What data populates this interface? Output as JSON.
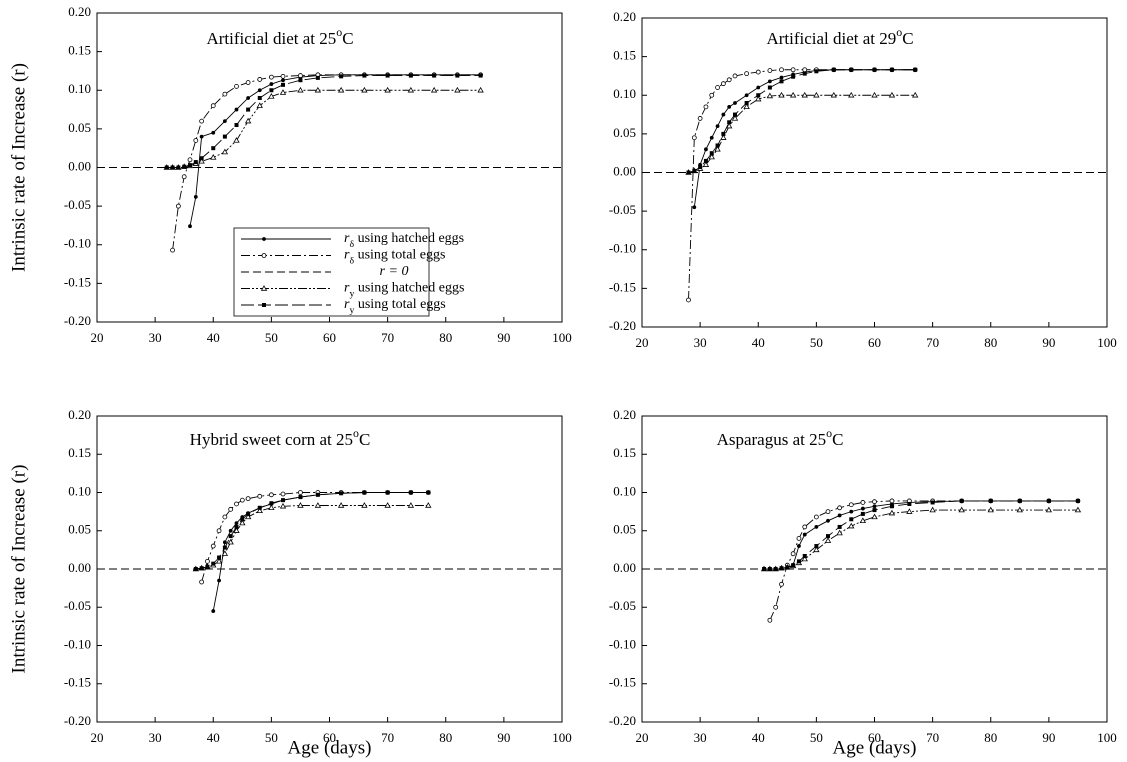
{
  "chart_data": [
    {
      "type": "line",
      "title": [
        "Artificial diet at 25",
        "o",
        "C"
      ],
      "ylabel": "Intrinsic rate of Increase (r)",
      "xlim": [
        20,
        100
      ],
      "ylim": [
        -0.2,
        0.2
      ],
      "xticks": [
        20,
        30,
        40,
        50,
        60,
        70,
        80,
        90,
        100
      ],
      "yticks": [
        {
          "value": -0.2,
          "label": "-0.20"
        },
        {
          "value": -0.15,
          "label": "-0.15"
        },
        {
          "value": -0.1,
          "label": "-0.10"
        },
        {
          "value": -0.05,
          "label": "-0.05"
        },
        {
          "value": 0,
          "label": "0.00"
        },
        {
          "value": 0.05,
          "label": "0.05"
        },
        {
          "value": 0.1,
          "label": "0.10"
        },
        {
          "value": 0.15,
          "label": "0.15"
        },
        {
          "value": 0.2,
          "label": "0.20"
        }
      ],
      "legend": "lower-center",
      "reference_line": {
        "name": "r = 0",
        "value": 0,
        "color": "#000000",
        "line_style": "dash"
      },
      "x": [
        32,
        33,
        34,
        35,
        36,
        37,
        38,
        40,
        42,
        44,
        46,
        48,
        50,
        52,
        55,
        58,
        62,
        66,
        70,
        74,
        78,
        82,
        86
      ],
      "series": [
        {
          "name": [
            "r",
            "δ",
            " using hatched eggs"
          ],
          "color": "#000000",
          "marker": "filled-circle",
          "line_style": "solid",
          "values": [
            null,
            null,
            null,
            null,
            -0.076,
            -0.038,
            0.04,
            0.045,
            0.06,
            0.075,
            0.09,
            0.1,
            0.108,
            0.113,
            0.117,
            0.119,
            0.12,
            0.12,
            0.12,
            0.12,
            0.12,
            0.12,
            0.12
          ]
        },
        {
          "name": [
            "r",
            "δ",
            " using total eggs"
          ],
          "color": "#000000",
          "marker": "open-circle",
          "line_style": "dash-dot",
          "values": [
            null,
            -0.107,
            -0.05,
            -0.012,
            0.01,
            0.035,
            0.06,
            0.08,
            0.095,
            0.105,
            0.11,
            0.114,
            0.117,
            0.118,
            0.119,
            0.12,
            0.12,
            0.12,
            0.12,
            0.12,
            0.12,
            0.12,
            0.12
          ]
        },
        {
          "name": [
            "r",
            "y",
            " using hatched eggs"
          ],
          "color": "#000000",
          "marker": "open-triangle",
          "line_style": "dash-dot-dot",
          "values": [
            0,
            0,
            0,
            0.001,
            0.002,
            0.005,
            0.008,
            0.013,
            0.02,
            0.035,
            0.06,
            0.08,
            0.092,
            0.097,
            0.1,
            0.1,
            0.1,
            0.1,
            0.1,
            0.1,
            0.1,
            0.1,
            0.1
          ]
        },
        {
          "name": [
            "r",
            "y",
            " using total eggs"
          ],
          "color": "#000000",
          "marker": "filled-square",
          "line_style": "long-dash",
          "values": [
            0,
            0,
            0,
            0.001,
            0.003,
            0.007,
            0.012,
            0.025,
            0.04,
            0.055,
            0.075,
            0.09,
            0.1,
            0.107,
            0.113,
            0.116,
            0.118,
            0.119,
            0.119,
            0.119,
            0.119,
            0.119,
            0.119
          ]
        }
      ]
    },
    {
      "type": "line",
      "title": [
        "Artificial diet at 29",
        "o",
        "C"
      ],
      "xlim": [
        20,
        100
      ],
      "ylim": [
        -0.2,
        0.2
      ],
      "xticks": [
        20,
        30,
        40,
        50,
        60,
        70,
        80,
        90,
        100
      ],
      "yticks": [
        {
          "value": -0.2,
          "label": "-0.20"
        },
        {
          "value": -0.15,
          "label": "-0.15"
        },
        {
          "value": -0.1,
          "label": "-0.10"
        },
        {
          "value": -0.05,
          "label": "-0.05"
        },
        {
          "value": 0,
          "label": "0.00"
        },
        {
          "value": 0.05,
          "label": "0.05"
        },
        {
          "value": 0.1,
          "label": "0.10"
        },
        {
          "value": 0.15,
          "label": "0.15"
        },
        {
          "value": 0.2,
          "label": "0.20"
        }
      ],
      "reference_line": {
        "value": 0,
        "color": "#000000",
        "line_style": "dash"
      },
      "x": [
        28,
        29,
        30,
        31,
        32,
        33,
        34,
        35,
        36,
        38,
        40,
        42,
        44,
        46,
        48,
        50,
        53,
        56,
        60,
        63,
        67
      ],
      "series": [
        {
          "color": "#000000",
          "marker": "filled-circle",
          "line_style": "solid",
          "values": [
            null,
            -0.045,
            0.01,
            0.03,
            0.045,
            0.06,
            0.075,
            0.085,
            0.09,
            0.1,
            0.11,
            0.118,
            0.123,
            0.127,
            0.13,
            0.132,
            0.133,
            0.133,
            0.133,
            0.133,
            0.133
          ]
        },
        {
          "color": "#000000",
          "marker": "open-circle",
          "line_style": "dash-dot",
          "values": [
            -0.165,
            0.045,
            0.07,
            0.085,
            0.1,
            0.11,
            0.115,
            0.12,
            0.125,
            0.128,
            0.13,
            0.132,
            0.133,
            0.133,
            0.133,
            0.133,
            0.133,
            0.133,
            0.133,
            0.133,
            0.133
          ]
        },
        {
          "color": "#000000",
          "marker": "open-triangle",
          "line_style": "dash-dot-dot",
          "values": [
            0,
            0.002,
            0.005,
            0.01,
            0.02,
            0.03,
            0.045,
            0.06,
            0.07,
            0.085,
            0.095,
            0.099,
            0.1,
            0.1,
            0.1,
            0.1,
            0.1,
            0.1,
            0.1,
            0.1,
            0.1
          ]
        },
        {
          "color": "#000000",
          "marker": "filled-square",
          "line_style": "long-dash",
          "values": [
            0,
            0.002,
            0.007,
            0.015,
            0.025,
            0.035,
            0.05,
            0.065,
            0.075,
            0.09,
            0.1,
            0.11,
            0.118,
            0.124,
            0.128,
            0.131,
            0.133,
            0.133,
            0.133,
            0.133,
            0.133
          ]
        }
      ]
    },
    {
      "type": "line",
      "title": [
        "Hybrid sweet corn at 25",
        "o",
        "C"
      ],
      "ylabel": "Intrinsic rate of Increase (r)",
      "xlabel": "Age (days)",
      "xlim": [
        20,
        100
      ],
      "ylim": [
        -0.2,
        0.2
      ],
      "xticks": [
        20,
        30,
        40,
        50,
        60,
        70,
        80,
        90,
        100
      ],
      "yticks": [
        {
          "value": -0.2,
          "label": "-0.20"
        },
        {
          "value": -0.15,
          "label": "-0.15"
        },
        {
          "value": -0.1,
          "label": "-0.10"
        },
        {
          "value": -0.05,
          "label": "-0.05"
        },
        {
          "value": 0,
          "label": "0.00"
        },
        {
          "value": 0.05,
          "label": "0.05"
        },
        {
          "value": 0.1,
          "label": "0.10"
        },
        {
          "value": 0.15,
          "label": "0.15"
        },
        {
          "value": 0.2,
          "label": "0.20"
        }
      ],
      "reference_line": {
        "value": 0,
        "color": "#000000",
        "line_style": "dash"
      },
      "x": [
        37,
        38,
        39,
        40,
        41,
        42,
        43,
        44,
        45,
        46,
        48,
        50,
        52,
        55,
        58,
        62,
        66,
        70,
        74,
        77
      ],
      "series": [
        {
          "color": "#000000",
          "marker": "filled-circle",
          "line_style": "solid",
          "values": [
            null,
            null,
            null,
            -0.055,
            -0.015,
            0.035,
            0.05,
            0.06,
            0.068,
            0.073,
            0.08,
            0.085,
            0.09,
            0.094,
            0.097,
            0.099,
            0.1,
            0.1,
            0.1,
            0.1
          ]
        },
        {
          "color": "#000000",
          "marker": "open-circle",
          "line_style": "dash-dot",
          "values": [
            null,
            -0.017,
            0.01,
            0.03,
            0.05,
            0.068,
            0.078,
            0.085,
            0.09,
            0.092,
            0.095,
            0.097,
            0.098,
            0.1,
            0.1,
            0.1,
            0.1,
            0.1,
            0.1,
            0.1
          ]
        },
        {
          "color": "#000000",
          "marker": "open-triangle",
          "line_style": "dash-dot-dot",
          "values": [
            0,
            0.001,
            0.003,
            0.005,
            0.01,
            0.02,
            0.035,
            0.05,
            0.06,
            0.068,
            0.076,
            0.08,
            0.082,
            0.083,
            0.083,
            0.083,
            0.083,
            0.083,
            0.083,
            0.083
          ]
        },
        {
          "color": "#000000",
          "marker": "filled-square",
          "line_style": "long-dash",
          "values": [
            0,
            0.001,
            0.003,
            0.007,
            0.015,
            0.028,
            0.043,
            0.055,
            0.065,
            0.072,
            0.08,
            0.086,
            0.09,
            0.094,
            0.097,
            0.099,
            0.1,
            0.1,
            0.1,
            0.1
          ]
        }
      ]
    },
    {
      "type": "line",
      "title": [
        "Asparagus at 25",
        "o",
        "C"
      ],
      "xlabel": "Age (days)",
      "xlim": [
        20,
        100
      ],
      "ylim": [
        -0.2,
        0.2
      ],
      "xticks": [
        20,
        30,
        40,
        50,
        60,
        70,
        80,
        90,
        100
      ],
      "yticks": [
        {
          "value": -0.2,
          "label": "-0.20"
        },
        {
          "value": -0.15,
          "label": "-0.15"
        },
        {
          "value": -0.1,
          "label": "-0.10"
        },
        {
          "value": -0.05,
          "label": "-0.05"
        },
        {
          "value": 0,
          "label": "0.00"
        },
        {
          "value": 0.05,
          "label": "0.05"
        },
        {
          "value": 0.1,
          "label": "0.10"
        },
        {
          "value": 0.15,
          "label": "0.15"
        },
        {
          "value": 0.2,
          "label": "0.20"
        }
      ],
      "reference_line": {
        "value": 0,
        "color": "#000000",
        "line_style": "dash"
      },
      "x": [
        41,
        42,
        43,
        44,
        45,
        46,
        47,
        48,
        50,
        52,
        54,
        56,
        58,
        60,
        63,
        66,
        70,
        75,
        80,
        85,
        90,
        95
      ],
      "series": [
        {
          "color": "#000000",
          "marker": "filled-circle",
          "line_style": "solid",
          "values": [
            null,
            null,
            null,
            null,
            null,
            0.005,
            0.03,
            0.045,
            0.055,
            0.063,
            0.07,
            0.075,
            0.079,
            0.082,
            0.085,
            0.087,
            0.088,
            0.089,
            0.089,
            0.089,
            0.089,
            0.089
          ]
        },
        {
          "color": "#000000",
          "marker": "open-circle",
          "line_style": "dash-dot",
          "values": [
            null,
            -0.067,
            -0.05,
            -0.02,
            0.005,
            0.02,
            0.04,
            0.055,
            0.068,
            0.075,
            0.08,
            0.084,
            0.087,
            0.088,
            0.089,
            0.089,
            0.089,
            0.089,
            0.089,
            0.089,
            0.089,
            0.089
          ]
        },
        {
          "color": "#000000",
          "marker": "open-triangle",
          "line_style": "dash-dot-dot",
          "values": [
            0,
            0,
            0,
            0.001,
            0.002,
            0.004,
            0.008,
            0.013,
            0.025,
            0.037,
            0.047,
            0.056,
            0.063,
            0.068,
            0.073,
            0.075,
            0.077,
            0.077,
            0.077,
            0.077,
            0.077,
            0.077
          ]
        },
        {
          "color": "#000000",
          "marker": "filled-square",
          "line_style": "long-dash",
          "values": [
            0,
            0,
            0,
            0.001,
            0.002,
            0.005,
            0.01,
            0.017,
            0.03,
            0.043,
            0.055,
            0.065,
            0.072,
            0.077,
            0.082,
            0.085,
            0.087,
            0.089,
            0.089,
            0.089,
            0.089,
            0.089
          ]
        }
      ]
    }
  ]
}
